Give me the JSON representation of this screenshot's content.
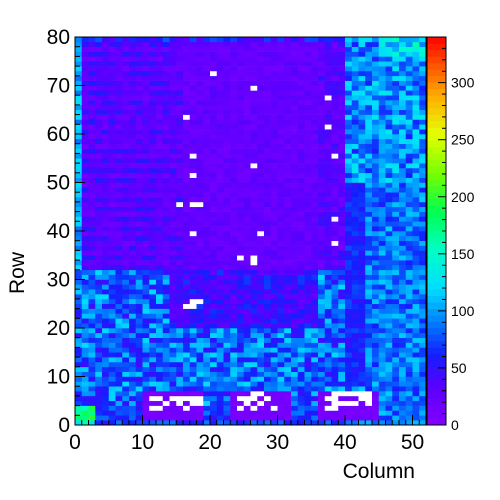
{
  "chart_data": {
    "type": "heatmap",
    "xlabel": "Column",
    "ylabel": "Row",
    "xlim": [
      0,
      52
    ],
    "ylim": [
      0,
      80
    ],
    "x_ticks": [
      "0",
      "10",
      "20",
      "30",
      "40",
      "50"
    ],
    "x_tick_values": [
      0,
      10,
      20,
      30,
      40,
      50
    ],
    "y_ticks": [
      "0",
      "10",
      "20",
      "30",
      "40",
      "50",
      "60",
      "70",
      "80"
    ],
    "y_tick_values": [
      0,
      10,
      20,
      30,
      40,
      50,
      60,
      70,
      80
    ],
    "colorbar": {
      "range": [
        0,
        340
      ],
      "ticks": [
        "0",
        "50",
        "100",
        "150",
        "200",
        "250",
        "300"
      ],
      "tick_values": [
        0,
        50,
        100,
        150,
        200,
        250,
        300
      ],
      "palette": "rainbow (violet → blue → cyan → green → yellow → red)"
    },
    "grid": false,
    "regions": [
      {
        "region": "upper-left block",
        "columns": [
          0,
          40
        ],
        "rows": [
          32,
          80
        ],
        "typical_value": 25
      },
      {
        "region": "right strip",
        "columns": [
          40,
          52
        ],
        "rows": [
          50,
          80
        ],
        "typical_value": 95
      },
      {
        "region": "right middle",
        "columns": [
          40,
          52
        ],
        "rows": [
          0,
          50
        ],
        "typical_value": 75
      },
      {
        "region": "lower band",
        "columns": [
          0,
          40
        ],
        "rows": [
          0,
          32
        ],
        "typical_value": 70
      },
      {
        "region": "bottom-left bright patch",
        "columns": [
          0,
          3
        ],
        "rows": [
          0,
          4
        ],
        "typical_value": 170
      },
      {
        "region": "bottom violet islands",
        "columns": [
          [
            10,
            19
          ],
          [
            23,
            32
          ],
          [
            36,
            45
          ]
        ],
        "rows": [
          1,
          6
        ],
        "typical_value": 10
      }
    ],
    "zero_cells": [
      [
        20,
        72
      ],
      [
        26,
        69
      ],
      [
        37,
        67
      ],
      [
        16,
        63
      ],
      [
        37,
        61
      ],
      [
        17,
        55
      ],
      [
        38,
        55
      ],
      [
        26,
        53
      ],
      [
        17,
        51
      ],
      [
        15,
        45
      ],
      [
        17,
        45
      ],
      [
        18,
        45
      ],
      [
        38,
        42
      ],
      [
        17,
        39
      ],
      [
        27,
        39
      ],
      [
        38,
        37
      ],
      [
        24,
        34
      ],
      [
        26,
        34
      ],
      [
        26,
        33
      ],
      [
        17,
        25
      ],
      [
        18,
        25
      ],
      [
        16,
        24
      ],
      [
        17,
        24
      ],
      [
        11,
        5
      ],
      [
        12,
        5
      ],
      [
        14,
        5
      ],
      [
        15,
        5
      ],
      [
        16,
        5
      ],
      [
        17,
        5
      ],
      [
        18,
        5
      ],
      [
        13,
        4
      ],
      [
        15,
        4
      ],
      [
        17,
        4
      ],
      [
        18,
        4
      ],
      [
        11,
        3
      ],
      [
        12,
        3
      ],
      [
        16,
        3
      ],
      [
        26,
        6
      ],
      [
        27,
        6
      ],
      [
        24,
        5
      ],
      [
        25,
        5
      ],
      [
        26,
        5
      ],
      [
        28,
        5
      ],
      [
        25,
        4
      ],
      [
        27,
        4
      ],
      [
        24,
        3
      ],
      [
        26,
        3
      ],
      [
        29,
        3
      ],
      [
        38,
        6
      ],
      [
        39,
        6
      ],
      [
        40,
        6
      ],
      [
        41,
        6
      ],
      [
        42,
        6
      ],
      [
        43,
        6
      ],
      [
        37,
        5
      ],
      [
        38,
        5
      ],
      [
        42,
        5
      ],
      [
        43,
        5
      ],
      [
        38,
        4
      ],
      [
        39,
        4
      ],
      [
        40,
        4
      ],
      [
        41,
        4
      ],
      [
        43,
        4
      ],
      [
        37,
        3
      ],
      [
        38,
        3
      ]
    ]
  }
}
